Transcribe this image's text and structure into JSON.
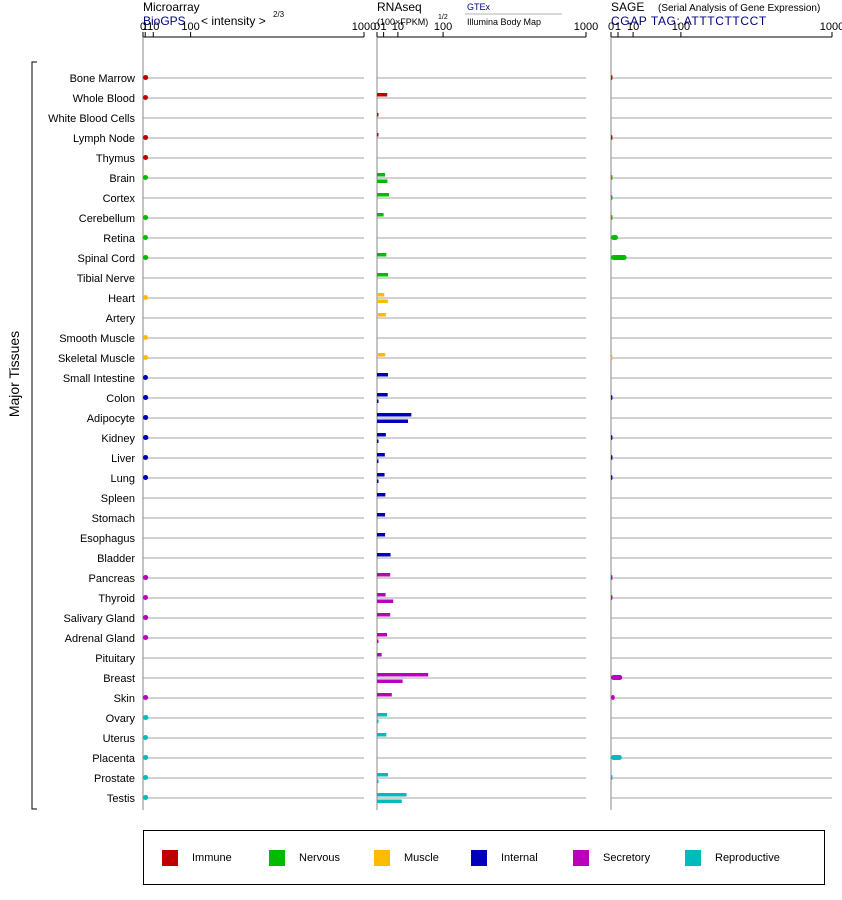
{
  "headers": {
    "microarray": {
      "title": "Microarray",
      "subtitle_link": "BioGPS",
      "subtitle_text": "< intensity >",
      "exponent": "2/3"
    },
    "rnaseq": {
      "title": "RNAseq",
      "subtitle_text": "(100×FPKM)",
      "exponent": "1/2",
      "link_top": "GTEx",
      "link_bottom": "Illumina Body Map"
    },
    "sage": {
      "title": "SAGE",
      "title_note": "(Serial Analysis of Gene Expression)",
      "tag_line": "CGAP TAG: ATTTCTTCCT"
    }
  },
  "y_axis_label": "Major Tissues",
  "axis_ticks": [
    "0",
    "1",
    "10",
    "100",
    "1000"
  ],
  "colors": {
    "Immune": "#c00000",
    "Nervous": "#00bb00",
    "Muscle": "#ffbb00",
    "Internal": "#0000bb",
    "Secretory": "#bb00bb",
    "Reproductive": "#00bbbb",
    "link": "#000080"
  },
  "legend": [
    "Immune",
    "Nervous",
    "Muscle",
    "Internal",
    "Secretory",
    "Reproductive"
  ],
  "chart_data": {
    "type": "bar",
    "orientation": "horizontal",
    "x_scale": "power (intensity^(2/3) for microarray, FPKM^(1/2) for RNAseq)",
    "xlim": [
      0,
      1000
    ],
    "categories": [
      "Bone Marrow",
      "Whole Blood",
      "White Blood Cells",
      "Lymph Node",
      "Thymus",
      "Brain",
      "Cortex",
      "Cerebellum",
      "Retina",
      "Spinal Cord",
      "Tibial Nerve",
      "Heart",
      "Artery",
      "Smooth Muscle",
      "Skeletal Muscle",
      "Small Intestine",
      "Colon",
      "Adipocyte",
      "Kidney",
      "Liver",
      "Lung",
      "Spleen",
      "Stomach",
      "Esophagus",
      "Bladder",
      "Pancreas",
      "Thyroid",
      "Salivary Gland",
      "Adrenal Gland",
      "Pituitary",
      "Breast",
      "Skin",
      "Ovary",
      "Uterus",
      "Placenta",
      "Prostate",
      "Testis"
    ],
    "groups": [
      "Immune",
      "Immune",
      "Immune",
      "Immune",
      "Immune",
      "Nervous",
      "Nervous",
      "Nervous",
      "Nervous",
      "Nervous",
      "Nervous",
      "Muscle",
      "Muscle",
      "Muscle",
      "Muscle",
      "Internal",
      "Internal",
      "Internal",
      "Internal",
      "Internal",
      "Internal",
      "Internal",
      "Internal",
      "Internal",
      "Internal",
      "Secretory",
      "Secretory",
      "Secretory",
      "Secretory",
      "Secretory",
      "Secretory",
      "Secretory",
      "Reproductive",
      "Reproductive",
      "Reproductive",
      "Reproductive",
      "Reproductive"
    ],
    "series": [
      {
        "name": "Microarray",
        "values": [
          3.6,
          3.4,
          null,
          3.5,
          3.5,
          3.4,
          null,
          3.5,
          3.4,
          3.6,
          null,
          3.4,
          null,
          3.4,
          3.6,
          3.4,
          3.6,
          3.6,
          3.8,
          3.5,
          3.5,
          null,
          null,
          null,
          null,
          3.6,
          3.4,
          3.6,
          3.6,
          null,
          null,
          3.5,
          3.8,
          3.4,
          3.6,
          3.5,
          3.5
        ]
      },
      {
        "name": "RNAseq GTEx",
        "values": [
          null,
          2.4,
          0.03,
          0.03,
          null,
          1.5,
          3.3,
          1.0,
          null,
          2.0,
          2.8,
          1.2,
          1.8,
          null,
          1.6,
          2.8,
          2.6,
          27,
          1.8,
          1.4,
          1.3,
          1.6,
          1.5,
          1.5,
          4.2,
          4.0,
          1.7,
          4.0,
          2.3,
          0.5,
          60,
          5.0,
          2.3,
          2.0,
          null,
          2.8,
          20
        ]
      },
      {
        "name": "RNAseq Illumina Body Map",
        "values": [
          null,
          null,
          null,
          null,
          null,
          2.5,
          null,
          null,
          null,
          null,
          null,
          2.7,
          null,
          null,
          null,
          null,
          0.03,
          22,
          0.03,
          0.03,
          0.03,
          null,
          null,
          null,
          null,
          null,
          6.0,
          null,
          0.03,
          null,
          15,
          null,
          0.03,
          null,
          null,
          0.03,
          14
        ]
      },
      {
        "name": "SAGE",
        "values": [
          0.03,
          null,
          null,
          0.03,
          null,
          0.02,
          0.02,
          0.02,
          1.0,
          5.0,
          null,
          null,
          null,
          null,
          0.02,
          null,
          0.03,
          null,
          0.03,
          0.03,
          0.03,
          null,
          null,
          null,
          null,
          0.03,
          0.03,
          null,
          null,
          null,
          2.6,
          0.3,
          null,
          null,
          2.4,
          0.02,
          null
        ]
      }
    ]
  }
}
